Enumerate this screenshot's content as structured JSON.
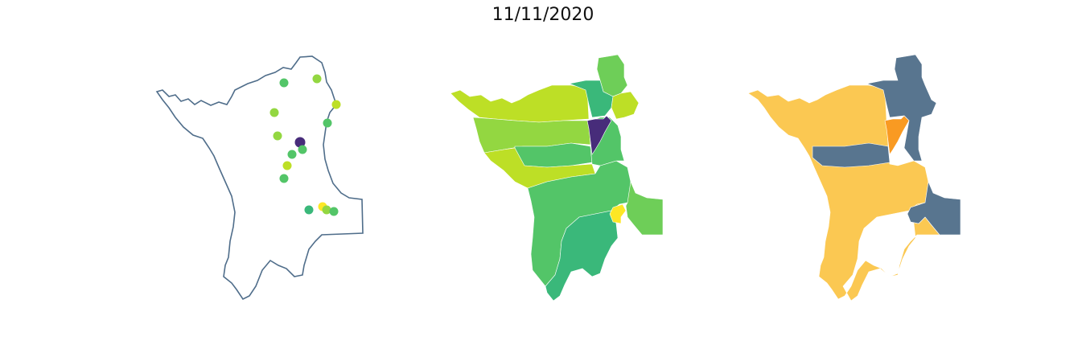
{
  "title": "11/11/2020",
  "colors": {
    "outline": "#4f6d8a",
    "viridis_purple": "#472c7a",
    "viridis_green_dark": "#3ab87a",
    "viridis_green": "#53c568",
    "viridis_green_light": "#6ece58",
    "viridis_lime": "#93d741",
    "viridis_yellowgreen": "#bddf26",
    "viridis_yellow": "#fde725",
    "category_slate": "#58758f",
    "category_yellow": "#fbc852",
    "category_orange": "#f99a22"
  },
  "panels": [
    {
      "name": "points-panel",
      "type": "point-map"
    },
    {
      "name": "choropleth-panel",
      "type": "choropleth"
    },
    {
      "name": "categorical-panel",
      "type": "categorical"
    }
  ]
}
